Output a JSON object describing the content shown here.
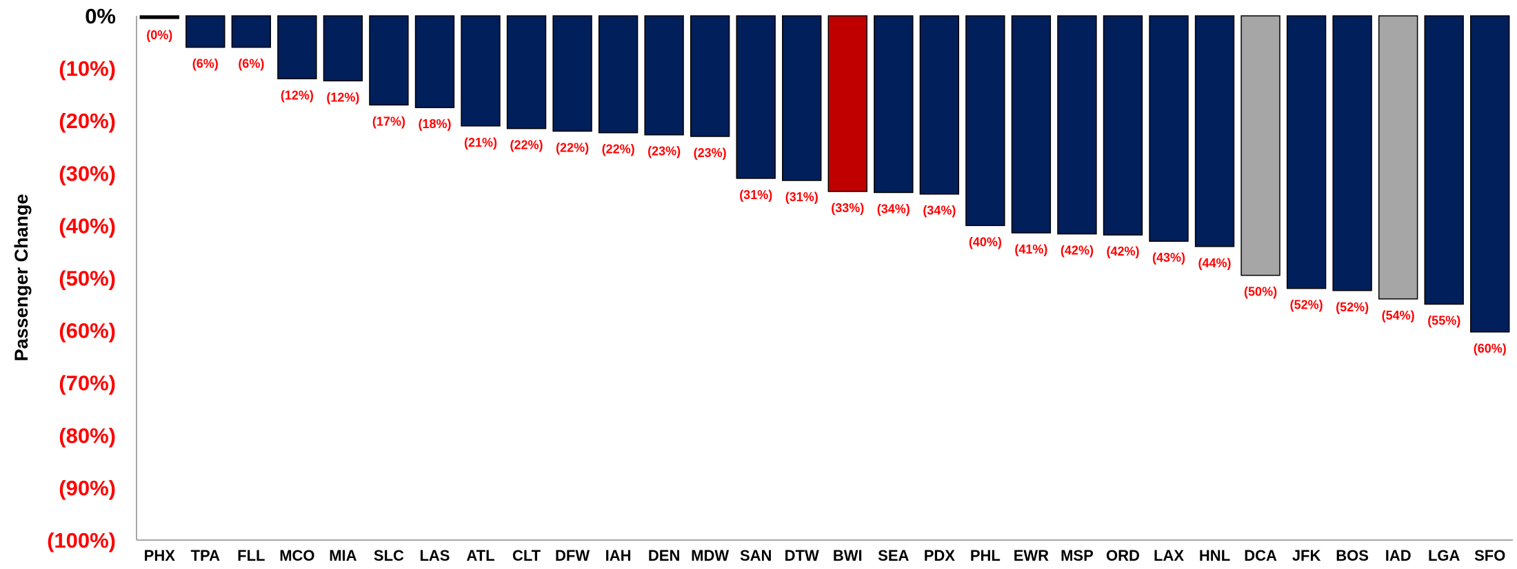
{
  "chart_data": {
    "type": "bar",
    "title": "",
    "xlabel": "",
    "ylabel": "Passenger Change",
    "ylim": [
      -100,
      0
    ],
    "yticks": [
      0,
      -10,
      -20,
      -30,
      -40,
      -50,
      -60,
      -70,
      -80,
      -90,
      -100
    ],
    "ytick_labels": [
      "0%",
      "(10%)",
      "(20%)",
      "(30%)",
      "(40%)",
      "(50%)",
      "(60%)",
      "(70%)",
      "(80%)",
      "(90%)",
      "(100%)"
    ],
    "grid": false,
    "categories": [
      "PHX",
      "TPA",
      "FLL",
      "MCO",
      "MIA",
      "SLC",
      "LAS",
      "ATL",
      "CLT",
      "DFW",
      "IAH",
      "DEN",
      "MDW",
      "SAN",
      "DTW",
      "BWI",
      "SEA",
      "PDX",
      "PHL",
      "EWR",
      "MSP",
      "ORD",
      "LAX",
      "HNL",
      "DCA",
      "JFK",
      "BOS",
      "IAD",
      "LGA",
      "SFO"
    ],
    "values": [
      -0.5,
      -6,
      -6,
      -12,
      -12.4,
      -17,
      -17.5,
      -21,
      -21.5,
      -22,
      -22.3,
      -22.7,
      -23,
      -31,
      -31.4,
      -33.5,
      -33.7,
      -34,
      -40,
      -41.4,
      -41.6,
      -41.8,
      -43,
      -44,
      -49.5,
      -52,
      -52.4,
      -54,
      -55,
      -60.3
    ],
    "data_labels": [
      "(0%)",
      "(6%)",
      "(6%)",
      "(12%)",
      "(12%)",
      "(17%)",
      "(18%)",
      "(21%)",
      "(22%)",
      "(22%)",
      "(22%)",
      "(23%)",
      "(23%)",
      "(31%)",
      "(31%)",
      "(33%)",
      "(34%)",
      "(34%)",
      "(40%)",
      "(41%)",
      "(42%)",
      "(42%)",
      "(43%)",
      "(44%)",
      "(50%)",
      "(52%)",
      "(52%)",
      "(54%)",
      "(55%)",
      "(60%)"
    ],
    "bar_colors": [
      "#000000",
      "#001f5b",
      "#001f5b",
      "#001f5b",
      "#001f5b",
      "#001f5b",
      "#001f5b",
      "#001f5b",
      "#001f5b",
      "#001f5b",
      "#001f5b",
      "#001f5b",
      "#001f5b",
      "#001f5b",
      "#001f5b",
      "#c00000",
      "#001f5b",
      "#001f5b",
      "#001f5b",
      "#001f5b",
      "#001f5b",
      "#001f5b",
      "#001f5b",
      "#001f5b",
      "#a6a6a6",
      "#001f5b",
      "#001f5b",
      "#a6a6a6",
      "#001f5b",
      "#001f5b"
    ],
    "colors": {
      "default_bar": "#001f5b",
      "highlight_bar": "#c00000",
      "gray_bar": "#a6a6a6",
      "negative_tick_labels": "#ff0000",
      "zero_tick_label": "#000000",
      "data_labels": "#ff0000"
    }
  }
}
